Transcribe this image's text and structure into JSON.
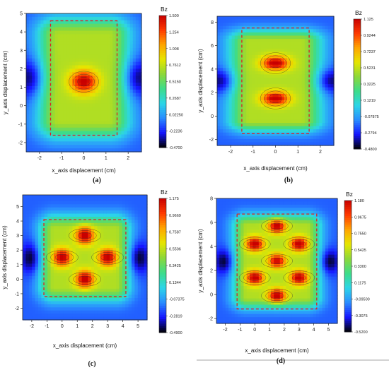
{
  "colors": {
    "colormap": [
      "#000000",
      "#1515ff",
      "#2a8cff",
      "#2cd6e8",
      "#3ddc8a",
      "#8cd83a",
      "#e6e600",
      "#ffa500",
      "#ff3a00",
      "#c80000"
    ],
    "frame": "#e02020",
    "contour": "#303030"
  },
  "chart_data": [
    {
      "type": "heatmap",
      "panel_label": "(a)",
      "xlabel": "x_axis displacement (cm)",
      "ylabel": "y_axis displacement (cm)",
      "colorbar_title": "Bz",
      "xlim": [
        -2.6,
        2.6
      ],
      "ylim": [
        -2.5,
        5.0
      ],
      "xticks": [
        -2,
        -1,
        0,
        1,
        2
      ],
      "yticks": [
        -2,
        -1,
        0,
        1,
        2,
        3,
        4,
        5
      ],
      "colorbar_ticks": [
        "1.500",
        "1.254",
        "1.008",
        "0.7612",
        "0.5150",
        "0.2687",
        "0.02250",
        "-0.2236",
        "-0.4700"
      ],
      "vmin": -0.47,
      "vmax": 1.5,
      "dashed_box": {
        "x": [
          -1.5,
          1.5
        ],
        "y": [
          -1.6,
          4.6
        ]
      },
      "peaks": [
        {
          "x": 0,
          "y": 1.3,
          "value": 1.45
        }
      ]
    },
    {
      "type": "heatmap",
      "panel_label": "(b)",
      "xlabel": "x_axis displacement (cm)",
      "ylabel": "y_axis displacement (cm)",
      "colorbar_title": "Bz",
      "xlim": [
        -2.6,
        2.6
      ],
      "ylim": [
        -2.5,
        8.5
      ],
      "xticks": [
        -2,
        -1,
        0,
        1,
        2
      ],
      "yticks": [
        -2,
        0,
        2,
        4,
        6,
        8
      ],
      "colorbar_ticks": [
        "1.125",
        "0.9244",
        "0.7237",
        "0.5231",
        "0.3225",
        "0.1219",
        "-0.07875",
        "-0.2794",
        "-0.4800"
      ],
      "vmin": -0.48,
      "vmax": 1.125,
      "dashed_box": {
        "x": [
          -1.5,
          1.5
        ],
        "y": [
          -1.5,
          7.5
        ]
      },
      "peaks": [
        {
          "x": 0,
          "y": 1.5,
          "value": 1.1
        },
        {
          "x": 0,
          "y": 4.5,
          "value": 1.1
        }
      ]
    },
    {
      "type": "heatmap",
      "panel_label": "(c)",
      "xlabel": "x_axis displacement (cm)",
      "ylabel": "y_axis displacement (cm)",
      "colorbar_title": "Bz",
      "xlim": [
        -2.6,
        5.6
      ],
      "ylim": [
        -2.8,
        5.8
      ],
      "xticks": [
        -2,
        -1,
        0,
        1,
        2,
        3,
        4,
        5
      ],
      "yticks": [
        -2,
        -1,
        0,
        1,
        2,
        3,
        4,
        5
      ],
      "colorbar_ticks": [
        "1.175",
        "0.9669",
        "0.7587",
        "0.5506",
        "0.3425",
        "0.1344",
        "-0.07375",
        "-0.2819",
        "-0.4900"
      ],
      "vmin": -0.49,
      "vmax": 1.175,
      "dashed_box": {
        "x": [
          -1.2,
          4.2
        ],
        "y": [
          -1.2,
          4.1
        ]
      },
      "peaks": [
        {
          "x": 0,
          "y": 1.5,
          "value": 1.15
        },
        {
          "x": 3,
          "y": 1.5,
          "value": 1.15
        },
        {
          "x": 1.5,
          "y": 3,
          "value": 1.15
        },
        {
          "x": 1.5,
          "y": 0,
          "value": 1.15
        }
      ]
    },
    {
      "type": "heatmap",
      "panel_label": "(d)",
      "xlabel": "x_axis displacement (cm)",
      "ylabel": "y_axis displacement (cm)",
      "colorbar_title": "Bz",
      "xlim": [
        -2.6,
        5.6
      ],
      "ylim": [
        -2.4,
        8.0
      ],
      "xticks": [
        -2,
        -1,
        0,
        1,
        2,
        3,
        4,
        5
      ],
      "yticks": [
        -2,
        0,
        2,
        4,
        6,
        8
      ],
      "colorbar_ticks": [
        "1.180",
        "0.9675",
        "0.7550",
        "0.5425",
        "0.3300",
        "0.1175",
        "-0.09500",
        "-0.3075",
        "-0.5200"
      ],
      "vmin": -0.52,
      "vmax": 1.18,
      "dashed_box": {
        "x": [
          -1.2,
          4.2
        ],
        "y": [
          -1.2,
          6.7
        ]
      },
      "peaks": [
        {
          "x": 0,
          "y": 1.4,
          "value": 1.15
        },
        {
          "x": 3,
          "y": 1.4,
          "value": 1.15
        },
        {
          "x": 0,
          "y": 4.2,
          "value": 1.15
        },
        {
          "x": 3,
          "y": 4.2,
          "value": 1.15
        },
        {
          "x": 1.5,
          "y": 5.7,
          "value": 1.15
        },
        {
          "x": 1.5,
          "y": 2.8,
          "value": 1.1
        },
        {
          "x": 1.5,
          "y": -0.1,
          "value": 1.15
        }
      ]
    }
  ]
}
